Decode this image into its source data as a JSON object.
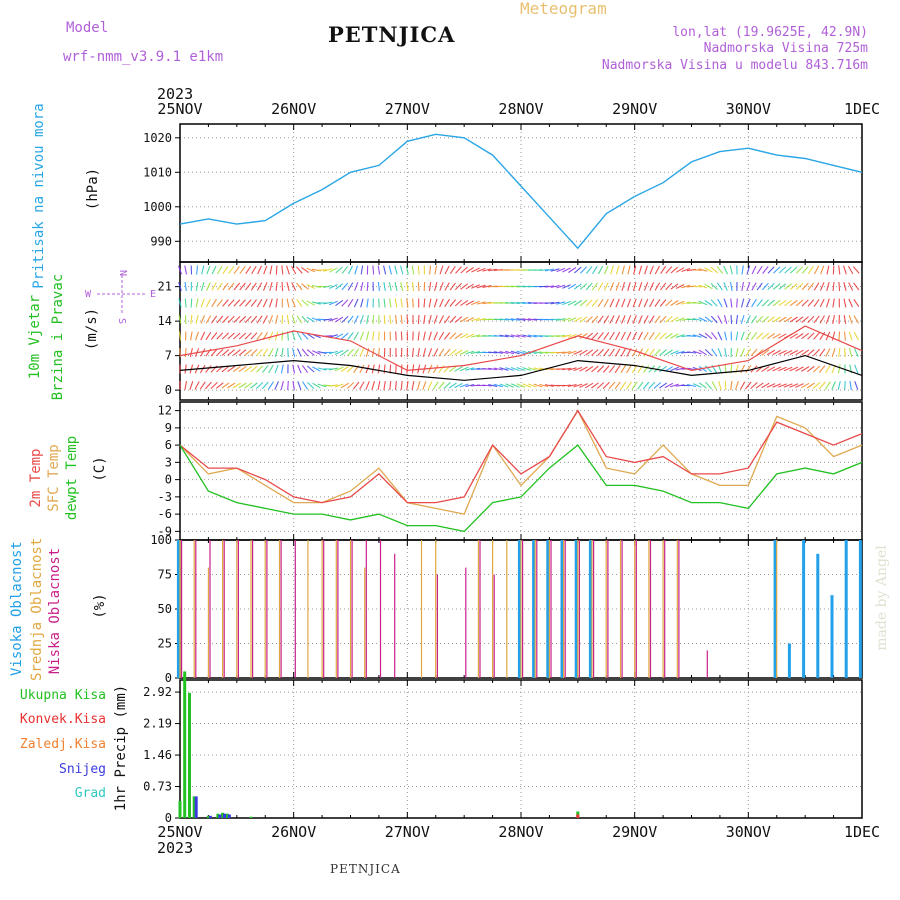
{
  "header": {
    "model_label": "Model",
    "model_value": "wrf-nmm_v3.9.1 e1km",
    "title": "PETNJICA",
    "meteogram": "Meteogram",
    "coords": "lon,lat (19.9625E, 42.9N)",
    "elevation": "Nadmorska Visina 725m",
    "model_elevation": "Nadmorska Visina u modelu 843.716m"
  },
  "time_axis": {
    "year": "2023",
    "dates": [
      "25NOV",
      "26NOV",
      "27NOV",
      "28NOV",
      "29NOV",
      "30NOV",
      "1DEC"
    ]
  },
  "panels": {
    "pressure": {
      "label": "Pritisak na nivou mora",
      "unit": "(hPa)"
    },
    "wind": {
      "label1": "10m Vjetar",
      "label2": "Brzina i Pravac",
      "unit": "(m/s)",
      "compass": {
        "n": "N",
        "s": "S",
        "w": "W",
        "e": "E"
      }
    },
    "temp": {
      "label1": "2m Temp",
      "label2": "SFC Temp",
      "label3": "dewpt Temp",
      "unit": "(C)"
    },
    "cloud": {
      "label1": "Visoka Oblacnost",
      "label2": "Srednja Oblacnost",
      "label3": "Niska Oblacnost",
      "unit": "(%)"
    },
    "precip": {
      "label": "1hr Precip (mm)",
      "legend": [
        "Ukupna Kisa",
        "Konvek.Kisa",
        "Zaledj.Kisa",
        "Snijeg",
        "Grad"
      ]
    }
  },
  "credit": "made by Angel",
  "footer": "PETNJICA",
  "colors": {
    "pressure": "#2aa6e6",
    "temp2m": "#e84a4a",
    "sfc": "#e0a850",
    "dewpt": "#22c022",
    "cloud_high": "#22a0e8",
    "cloud_mid": "#e0a840",
    "cloud_low": "#c8208a",
    "rain_total": "#22c022",
    "rain_conv": "#e83030",
    "freezing": "#f08030",
    "snow": "#3a3ae0",
    "hail": "#30c8c0",
    "purple": "#b060d8"
  },
  "chart_data": [
    {
      "type": "line",
      "name": "pressure",
      "ylabel": "(hPa)",
      "ylim": [
        984,
        1024
      ],
      "yticks": [
        990,
        1000,
        1010,
        1020
      ],
      "x_hours": [
        0,
        6,
        12,
        18,
        24,
        30,
        36,
        42,
        48,
        54,
        60,
        66,
        72,
        78,
        84,
        90,
        96,
        102,
        108,
        114,
        120,
        126,
        132,
        138,
        144
      ],
      "series": [
        {
          "values": [
            995,
            996.5,
            995,
            996,
            1001,
            1005,
            1010,
            1012,
            1019,
            1021,
            1020,
            1015,
            1006,
            997,
            988,
            998,
            1003,
            1007,
            1013,
            1016,
            1017,
            1015,
            1014,
            1012,
            1010
          ]
        }
      ]
    },
    {
      "type": "line",
      "name": "wind_speed",
      "ylabel": "(m/s)",
      "ylim": [
        -2,
        26
      ],
      "yticks": [
        0,
        7,
        14,
        21
      ],
      "x_hours": [
        0,
        12,
        24,
        36,
        48,
        60,
        72,
        84,
        96,
        108,
        120,
        132,
        144
      ],
      "series": [
        {
          "name": "",
          "values": [
            4,
            5,
            6,
            5,
            3,
            2,
            3,
            6,
            5,
            3,
            4,
            7,
            3
          ]
        },
        {
          "name": "",
          "values": [
            7,
            9,
            12,
            10,
            4,
            5,
            7,
            11,
            8,
            4,
            6,
            13,
            8
          ]
        }
      ]
    },
    {
      "type": "line",
      "name": "temperature",
      "ylabel": "(C)",
      "ylim": [
        -10.5,
        13.5
      ],
      "yticks": [
        -9,
        -6,
        -3,
        0,
        3,
        6,
        9,
        12
      ],
      "x_hours": [
        0,
        6,
        12,
        18,
        24,
        30,
        36,
        42,
        48,
        54,
        60,
        66,
        72,
        78,
        84,
        90,
        96,
        102,
        108,
        114,
        120,
        126,
        132,
        138,
        144
      ],
      "series": [
        {
          "name": "2m Temp",
          "values": [
            6,
            2,
            2,
            0,
            -3,
            -4,
            -3,
            1,
            -4,
            -4,
            -3,
            6,
            1,
            4,
            12,
            4,
            3,
            4,
            1,
            1,
            2,
            10,
            8,
            6,
            8
          ]
        },
        {
          "name": "SFC Temp",
          "values": [
            6,
            1,
            2,
            -1,
            -4,
            -4,
            -2,
            2,
            -4,
            -5,
            -6,
            6,
            -1,
            4,
            12,
            2,
            1,
            6,
            1,
            -1,
            -1,
            11,
            9,
            4,
            6
          ]
        },
        {
          "name": "dewpt Temp",
          "values": [
            6,
            -2,
            -4,
            -5,
            -6,
            -6,
            -7,
            -6,
            -8,
            -8,
            -9,
            -4,
            -3,
            2,
            6,
            -1,
            -1,
            -2,
            -4,
            -4,
            -5,
            1,
            2,
            1,
            3
          ]
        }
      ]
    },
    {
      "type": "bar",
      "name": "cloud_cover",
      "ylabel": "(%)",
      "ylim": [
        0,
        100
      ],
      "yticks": [
        0,
        25,
        50,
        75,
        100
      ],
      "x_hours": [
        0,
        3,
        6,
        9,
        12,
        15,
        18,
        21,
        24,
        27,
        30,
        33,
        36,
        39,
        42,
        45,
        48,
        51,
        54,
        57,
        60,
        63,
        66,
        69,
        72,
        75,
        78,
        81,
        84,
        87,
        90,
        93,
        96,
        99,
        102,
        105,
        108,
        111,
        114,
        117,
        120,
        123,
        126,
        129,
        132,
        135,
        138,
        141,
        144
      ],
      "series": [
        {
          "name": "Visoka Oblacnost",
          "values": [
            100,
            0,
            0,
            0,
            0,
            0,
            0,
            0,
            0,
            0,
            0,
            0,
            0,
            0,
            0,
            0,
            0,
            0,
            0,
            0,
            0,
            0,
            0,
            0,
            100,
            100,
            100,
            100,
            100,
            100,
            0,
            0,
            0,
            0,
            0,
            0,
            0,
            0,
            0,
            0,
            0,
            0,
            100,
            25,
            100,
            90,
            60,
            100,
            100
          ]
        },
        {
          "name": "Srednja Oblacnost",
          "values": [
            100,
            100,
            80,
            100,
            100,
            100,
            100,
            100,
            0,
            100,
            100,
            100,
            100,
            80,
            0,
            0,
            0,
            100,
            100,
            0,
            0,
            100,
            100,
            100,
            100,
            100,
            100,
            100,
            100,
            100,
            100,
            100,
            100,
            100,
            100,
            100,
            0,
            0,
            0,
            0,
            0,
            0,
            100,
            0,
            0,
            0,
            0,
            0,
            0
          ]
        },
        {
          "name": "Niska Oblacnost",
          "values": [
            100,
            100,
            100,
            100,
            100,
            100,
            100,
            100,
            100,
            0,
            100,
            100,
            100,
            100,
            100,
            90,
            0,
            0,
            75,
            0,
            80,
            100,
            75,
            0,
            100,
            100,
            100,
            100,
            100,
            100,
            100,
            100,
            100,
            100,
            100,
            100,
            0,
            20,
            0,
            0,
            0,
            0,
            0,
            0,
            0,
            0,
            0,
            0,
            0
          ]
        }
      ]
    },
    {
      "type": "bar",
      "name": "precipitation",
      "ylabel": "1hr Precip (mm)",
      "ylim": [
        0,
        3.2
      ],
      "yticks": [
        0,
        0.73,
        1.46,
        2.19,
        2.92
      ],
      "x_hours": [
        0,
        1,
        2,
        3,
        6,
        8,
        9,
        10,
        15,
        84
      ],
      "series": [
        {
          "name": "Ukupna Kisa",
          "values": [
            0.4,
            3.4,
            2.9,
            0.5,
            0.05,
            0.1,
            0.12,
            0.1,
            0.03,
            0.15
          ]
        },
        {
          "name": "Konvek.Kisa",
          "values": [
            0,
            0,
            0,
            0,
            0,
            0,
            0,
            0,
            0,
            0.08
          ]
        },
        {
          "name": "Snijeg",
          "values": [
            0,
            0,
            0,
            0.5,
            0.05,
            0.08,
            0.1,
            0.08,
            0,
            0
          ]
        }
      ]
    }
  ]
}
